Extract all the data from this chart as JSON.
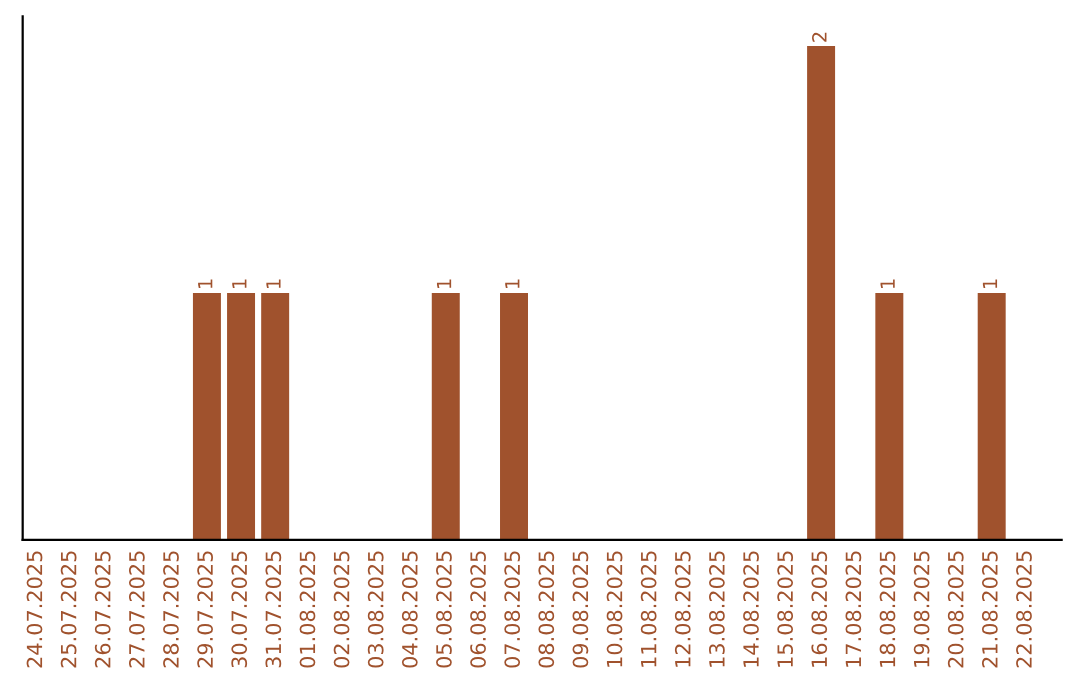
{
  "chart_data": {
    "type": "bar",
    "categories": [
      "24.07.2025",
      "25.07.2025",
      "26.07.2025",
      "27.07.2025",
      "28.07.2025",
      "29.07.2025",
      "30.07.2025",
      "31.07.2025",
      "01.08.2025",
      "02.08.2025",
      "03.08.2025",
      "04.08.2025",
      "05.08.2025",
      "06.08.2025",
      "07.08.2025",
      "08.08.2025",
      "09.08.2025",
      "10.08.2025",
      "11.08.2025",
      "12.08.2025",
      "13.08.2025",
      "14.08.2025",
      "15.08.2025",
      "16.08.2025",
      "17.08.2025",
      "18.08.2025",
      "19.08.2025",
      "20.08.2025",
      "21.08.2025",
      "22.08.2025"
    ],
    "values": [
      0,
      0,
      0,
      0,
      0,
      1,
      1,
      1,
      0,
      0,
      0,
      0,
      1,
      0,
      1,
      0,
      0,
      0,
      0,
      0,
      0,
      0,
      0,
      2,
      0,
      1,
      0,
      0,
      1,
      0
    ],
    "value_labels": [
      null,
      null,
      null,
      null,
      null,
      "1",
      "1",
      "1",
      null,
      null,
      null,
      null,
      "1",
      null,
      "1",
      null,
      null,
      null,
      null,
      null,
      null,
      null,
      null,
      "2",
      null,
      "1",
      null,
      null,
      "1",
      null
    ],
    "color": "#a0522d",
    "tick_labels": "x",
    "grid": false,
    "legend": false
  }
}
